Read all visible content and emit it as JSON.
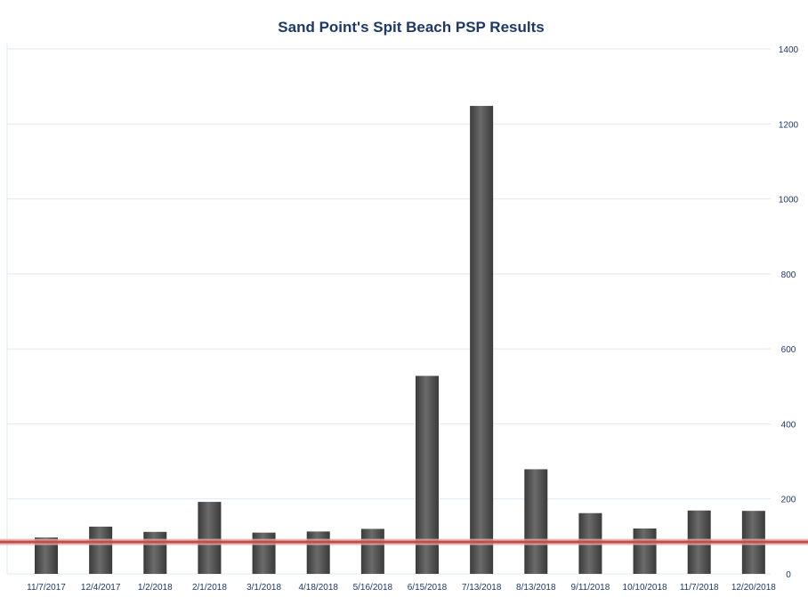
{
  "chart_data": {
    "type": "bar",
    "title": "Sand Point's Spit Beach PSP Results",
    "categories": [
      "11/7/2017",
      "12/4/2017",
      "1/2/2018",
      "2/1/2018",
      "3/1/2018",
      "4/18/2018",
      "5/16/2018",
      "6/15/2018",
      "7/13/2018",
      "8/13/2018",
      "9/11/2018",
      "10/10/2018",
      "11/7/2018",
      "12/20/2018"
    ],
    "series": [
      {
        "values": [
          97,
          126,
          112,
          192,
          110,
          113,
          120,
          528,
          1248,
          279,
          162,
          121,
          169,
          168
        ]
      }
    ],
    "reference_line": {
      "value": 85,
      "color": "#c0504d"
    },
    "ylim": [
      0,
      1400
    ],
    "yticks": [
      0,
      200,
      400,
      600,
      800,
      1000,
      1200,
      1400
    ],
    "y_axis_side": "right",
    "grid": true,
    "bar_color": "#4d4d4d",
    "grid_color": "#dbe9f5"
  }
}
